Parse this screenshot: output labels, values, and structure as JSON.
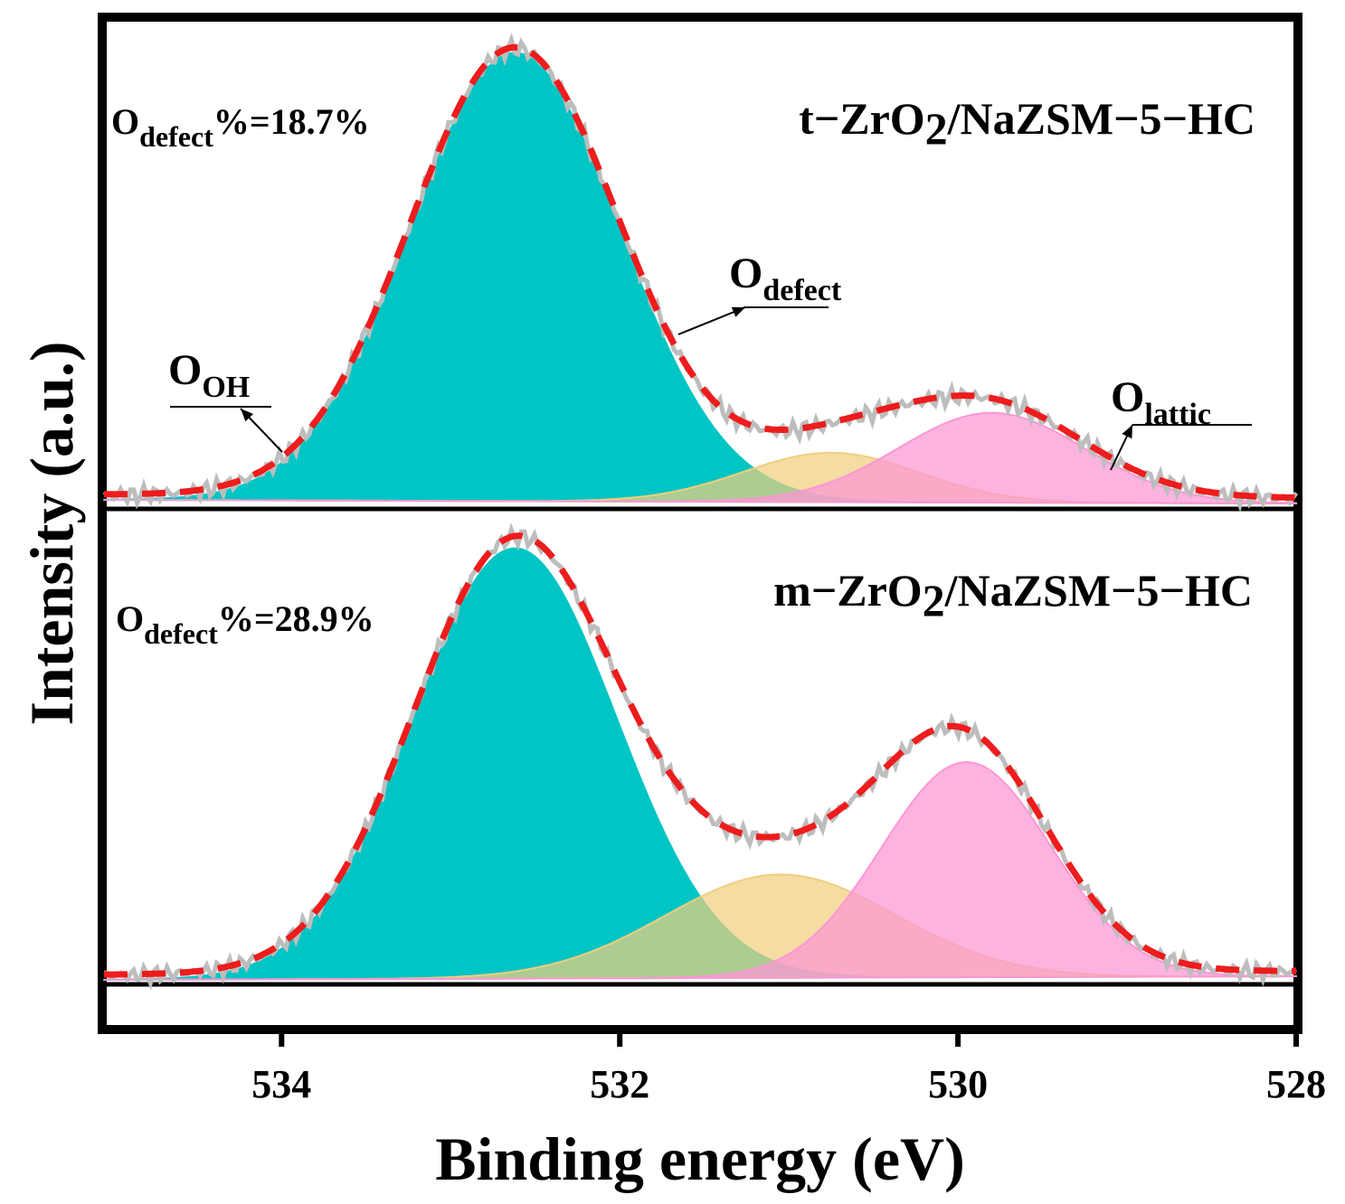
{
  "chart_data": {
    "type": "area",
    "xlabel": "Binding energy (eV)",
    "ylabel": "Intensity (a.u.)",
    "xlim": [
      535.05,
      528
    ],
    "x_reversed": true,
    "x_ticks": [
      534,
      532,
      530,
      528
    ],
    "y_ticks": "none",
    "grid": false,
    "component_labels": {
      "oh": {
        "main": "O",
        "sub": "OH"
      },
      "defect": {
        "main": "O",
        "sub": "defect"
      },
      "lattic": {
        "main": "O",
        "sub": "lattic"
      }
    },
    "colors": {
      "oh": "#00c5c5",
      "defect": "#f0ce7e",
      "lattic": "#fc96d4",
      "raw": "#bdbdbd",
      "fit": "#ee1c1c",
      "frame": "#000000"
    },
    "panels": [
      {
        "name": "t−ZrO2/NaZSM−5−HC",
        "name_parts": [
          "t−ZrO",
          "2",
          "/NaZSM−5−HC"
        ],
        "defect_pct_parts": [
          "O",
          "defect",
          "%=18.7%"
        ],
        "components": [
          {
            "key": "oh",
            "center": 532.62,
            "height": 1.0,
            "sigma": 0.62
          },
          {
            "key": "defect",
            "center": 530.75,
            "height": 0.11,
            "sigma": 0.52
          },
          {
            "key": "lattic",
            "center": 529.8,
            "height": 0.2,
            "sigma": 0.55
          }
        ],
        "label_anchor_x": {
          "oh": 533.8,
          "defect": 531.3,
          "lattic": 529.6
        }
      },
      {
        "name": "m−ZrO2/NaZSM−5−HC",
        "name_parts": [
          "m−ZrO",
          "2",
          "/NaZSM−5−HC"
        ],
        "defect_pct_parts": [
          "O",
          "defect",
          "%=28.9%"
        ],
        "components": [
          {
            "key": "oh",
            "center": 532.62,
            "height": 1.0,
            "sigma": 0.6
          },
          {
            "key": "defect",
            "center": 531.05,
            "height": 0.24,
            "sigma": 0.68
          },
          {
            "key": "lattic",
            "center": 529.95,
            "height": 0.5,
            "sigma": 0.5
          }
        ]
      }
    ]
  }
}
